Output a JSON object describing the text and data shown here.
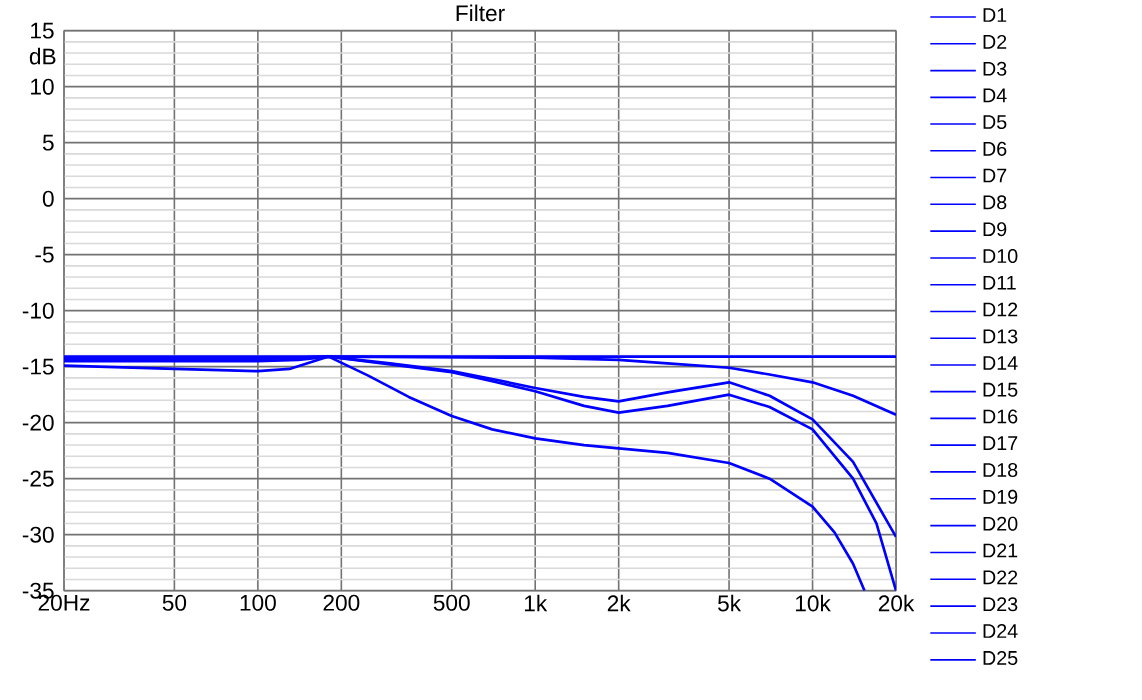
{
  "chart_data": {
    "type": "line",
    "title": "Filter",
    "ylabel": "dB",
    "xlim": [
      20,
      20000
    ],
    "ylim": [
      -35,
      15
    ],
    "xticks": [
      {
        "value": 20,
        "label": "20Hz"
      },
      50,
      100,
      200,
      500,
      {
        "value": 1000,
        "label": "1k"
      },
      {
        "value": 2000,
        "label": "2k"
      },
      {
        "value": 5000,
        "label": "5k"
      },
      {
        "value": 10000,
        "label": "10k"
      },
      {
        "value": 20000,
        "label": "20k"
      }
    ],
    "yticks": [
      15,
      10,
      5,
      0,
      -5,
      -10,
      -15,
      -20,
      -25,
      -30,
      -35
    ],
    "grid": true,
    "legend": "right",
    "log": "x",
    "line_style": "solid",
    "marker": "none",
    "series": [
      {
        "name": "D1",
        "color": "#0000ff",
        "x": [
          20,
          20000
        ],
        "values": [
          -14.1,
          -14.1
        ]
      },
      {
        "name": "D2",
        "color": "#0000ff",
        "x": [
          20,
          100,
          180,
          1000,
          2000,
          3000,
          5000,
          7000,
          10000,
          14000,
          20000
        ],
        "values": [
          -14.3,
          -14.3,
          -14.1,
          -14.2,
          -14.4,
          -14.7,
          -15.1,
          -15.7,
          -16.4,
          -17.6,
          -19.3
        ]
      },
      {
        "name": "D3",
        "color": "#0000ff",
        "x": [
          20,
          50,
          100,
          130,
          180,
          300,
          500,
          700,
          1000,
          1500,
          2000,
          3000,
          5000,
          7000,
          10000,
          14000,
          20000
        ],
        "values": [
          -14.9,
          -15.2,
          -15.4,
          -15.2,
          -14.1,
          -14.7,
          -15.4,
          -16.1,
          -16.9,
          -17.7,
          -18.1,
          -17.3,
          -16.4,
          -17.6,
          -19.7,
          -23.5,
          -30.2
        ]
      },
      {
        "name": "D4",
        "color": "#0000ff",
        "x": [
          20,
          50,
          100,
          140,
          180,
          300,
          500,
          700,
          1000,
          1500,
          2000,
          3000,
          5000,
          7000,
          10000,
          14000,
          17000,
          20000
        ],
        "values": [
          -14.5,
          -14.5,
          -14.5,
          -14.4,
          -14.1,
          -14.8,
          -15.5,
          -16.3,
          -17.2,
          -18.5,
          -19.1,
          -18.5,
          -17.5,
          -18.6,
          -20.6,
          -25.0,
          -29.0,
          -35.0
        ]
      },
      {
        "name": "D5",
        "color": "#0000ff",
        "x": [
          20,
          100,
          180,
          250,
          350,
          500,
          700,
          1000,
          1500,
          2000,
          3000,
          5000,
          7000,
          10000,
          12000,
          14000,
          15400
        ],
        "values": [
          -14.3,
          -14.3,
          -14.1,
          -15.8,
          -17.7,
          -19.4,
          -20.6,
          -21.4,
          -22.0,
          -22.3,
          -22.7,
          -23.6,
          -25.0,
          -27.5,
          -29.8,
          -32.6,
          -35.0
        ]
      },
      {
        "name": "D6",
        "color": "#0000ff"
      },
      {
        "name": "D7",
        "color": "#0000ff"
      },
      {
        "name": "D8",
        "color": "#0000ff"
      },
      {
        "name": "D9",
        "color": "#0000ff"
      },
      {
        "name": "D10",
        "color": "#0000ff"
      },
      {
        "name": "D11",
        "color": "#0000ff"
      },
      {
        "name": "D12",
        "color": "#0000ff"
      },
      {
        "name": "D13",
        "color": "#0000ff"
      },
      {
        "name": "D14",
        "color": "#0000ff"
      },
      {
        "name": "D15",
        "color": "#0000ff"
      },
      {
        "name": "D16",
        "color": "#0000ff"
      },
      {
        "name": "D17",
        "color": "#0000ff"
      },
      {
        "name": "D18",
        "color": "#0000ff"
      },
      {
        "name": "D19",
        "color": "#0000ff"
      },
      {
        "name": "D20",
        "color": "#0000ff"
      },
      {
        "name": "D21",
        "color": "#0000ff"
      },
      {
        "name": "D22",
        "color": "#0000ff"
      },
      {
        "name": "D23",
        "color": "#0000ff"
      },
      {
        "name": "D24",
        "color": "#0000ff"
      },
      {
        "name": "D25",
        "color": "#0000ff"
      }
    ]
  }
}
